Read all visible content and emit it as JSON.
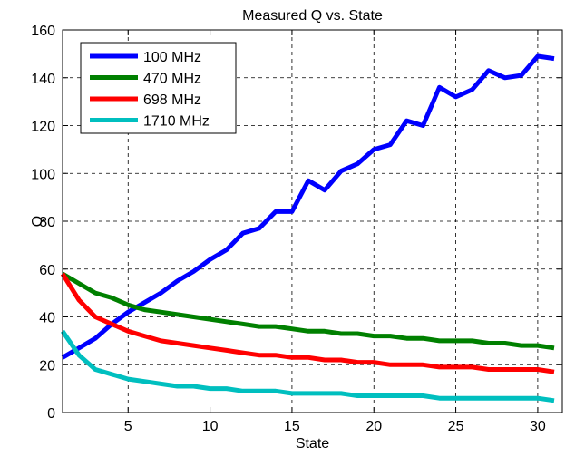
{
  "chart_data": {
    "type": "line",
    "title": "Measured Q vs. State",
    "xlabel": "State",
    "ylabel": "Q",
    "xlim": [
      1,
      31.5
    ],
    "ylim": [
      0,
      160
    ],
    "xticks": [
      5,
      10,
      15,
      20,
      25,
      30
    ],
    "yticks": [
      0,
      20,
      40,
      60,
      80,
      100,
      120,
      140,
      160
    ],
    "grid": true,
    "legend_position": "top-left",
    "x": [
      1,
      2,
      3,
      4,
      5,
      6,
      7,
      8,
      9,
      10,
      11,
      12,
      13,
      14,
      15,
      16,
      17,
      18,
      19,
      20,
      21,
      22,
      23,
      24,
      25,
      26,
      27,
      28,
      29,
      30,
      31
    ],
    "series": [
      {
        "name": "100 MHz",
        "color": "#0000ff",
        "values": [
          23,
          27,
          31,
          37,
          42,
          46,
          50,
          55,
          59,
          64,
          68,
          75,
          77,
          84,
          84,
          97,
          93,
          101,
          104,
          110,
          112,
          122,
          120,
          136,
          132,
          135,
          143,
          140,
          141,
          149,
          148
        ]
      },
      {
        "name": "470 MHz",
        "color": "#008000",
        "values": [
          58,
          54,
          50,
          48,
          45,
          43,
          42,
          41,
          40,
          39,
          38,
          37,
          36,
          36,
          35,
          34,
          34,
          33,
          33,
          32,
          32,
          31,
          31,
          30,
          30,
          30,
          29,
          29,
          28,
          28,
          27
        ]
      },
      {
        "name": "698 MHz",
        "color": "#ff0000",
        "values": [
          58,
          47,
          40,
          37,
          34,
          32,
          30,
          29,
          28,
          27,
          26,
          25,
          24,
          24,
          23,
          23,
          22,
          22,
          21,
          21,
          20,
          20,
          20,
          19,
          19,
          19,
          18,
          18,
          18,
          18,
          17
        ]
      },
      {
        "name": "1710 MHz",
        "color": "#00bfbf",
        "values": [
          34,
          24,
          18,
          16,
          14,
          13,
          12,
          11,
          11,
          10,
          10,
          9,
          9,
          9,
          8,
          8,
          8,
          8,
          7,
          7,
          7,
          7,
          7,
          6,
          6,
          6,
          6,
          6,
          6,
          6,
          5
        ]
      }
    ]
  }
}
